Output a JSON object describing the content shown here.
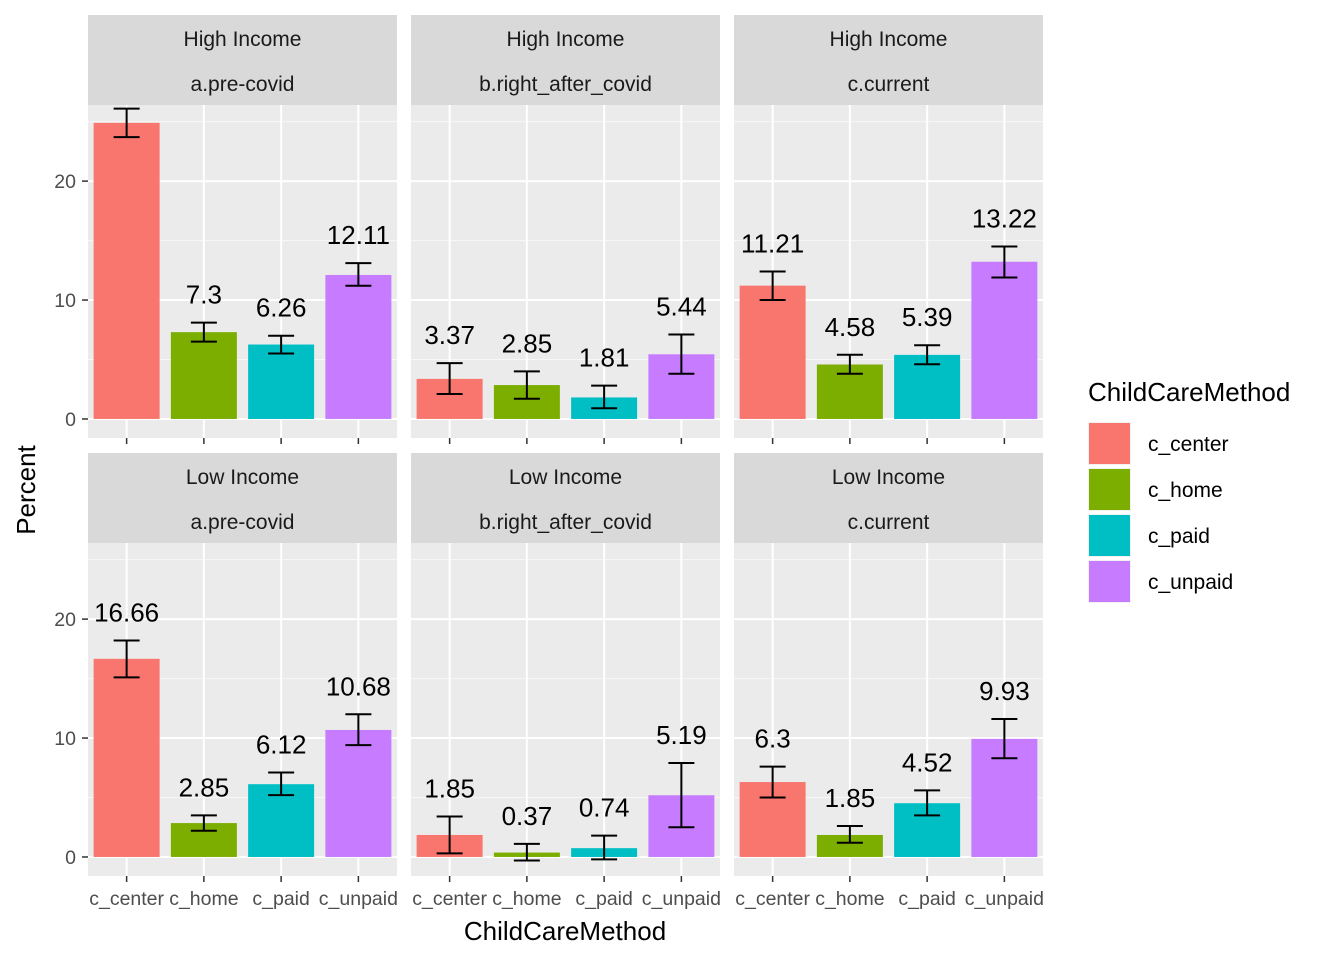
{
  "chart_data": {
    "type": "bar",
    "xlabel": "ChildCareMethod",
    "ylabel": "Percent",
    "ylim": [
      -1.6,
      26.4
    ],
    "yticks": [
      0,
      10,
      20
    ],
    "categories": [
      "c_center",
      "c_home",
      "c_paid",
      "c_unpaid"
    ],
    "colors": {
      "c_center": "#F8766D",
      "c_home": "#7CAE00",
      "c_paid": "#00BFC4",
      "c_unpaid": "#C77CFF"
    },
    "legend": {
      "title": "ChildCareMethod",
      "position": "right",
      "items": [
        "c_center",
        "c_home",
        "c_paid",
        "c_unpaid"
      ]
    },
    "grid": true,
    "panels": [
      {
        "row": 0,
        "col": 0,
        "income": "High Income",
        "period": "a.pre-covid",
        "values": [
          24.9,
          7.3,
          6.26,
          12.11
        ],
        "labels": [
          "",
          "7.3",
          "6.26",
          "12.11"
        ],
        "error_low": [
          23.7,
          6.5,
          5.5,
          11.2
        ],
        "error_high": [
          26.1,
          8.1,
          7.0,
          13.1
        ]
      },
      {
        "row": 0,
        "col": 1,
        "income": "High Income",
        "period": "b.right_after_covid",
        "values": [
          3.37,
          2.85,
          1.81,
          5.44
        ],
        "labels": [
          "3.37",
          "2.85",
          "1.81",
          "5.44"
        ],
        "error_low": [
          2.1,
          1.7,
          0.9,
          3.8
        ],
        "error_high": [
          4.7,
          4.0,
          2.8,
          7.1
        ]
      },
      {
        "row": 0,
        "col": 2,
        "income": "High Income",
        "period": "c.current",
        "values": [
          11.21,
          4.58,
          5.39,
          13.22
        ],
        "labels": [
          "11.21",
          "4.58",
          "5.39",
          "13.22"
        ],
        "error_low": [
          10.0,
          3.8,
          4.6,
          11.9
        ],
        "error_high": [
          12.4,
          5.4,
          6.2,
          14.5
        ]
      },
      {
        "row": 1,
        "col": 0,
        "income": "Low Income",
        "period": "a.pre-covid",
        "values": [
          16.66,
          2.85,
          6.12,
          10.68
        ],
        "labels": [
          "16.66",
          "2.85",
          "6.12",
          "10.68"
        ],
        "error_low": [
          15.1,
          2.2,
          5.2,
          9.4
        ],
        "error_high": [
          18.2,
          3.5,
          7.1,
          12.0
        ]
      },
      {
        "row": 1,
        "col": 1,
        "income": "Low Income",
        "period": "b.right_after_covid",
        "values": [
          1.85,
          0.37,
          0.74,
          5.19
        ],
        "labels": [
          "1.85",
          "0.37",
          "0.74",
          "5.19"
        ],
        "error_low": [
          0.3,
          -0.3,
          -0.2,
          2.5
        ],
        "error_high": [
          3.4,
          1.1,
          1.8,
          7.9
        ]
      },
      {
        "row": 1,
        "col": 2,
        "income": "Low Income",
        "period": "c.current",
        "values": [
          6.3,
          1.85,
          4.52,
          9.93
        ],
        "labels": [
          "6.3",
          "1.85",
          "4.52",
          "9.93"
        ],
        "error_low": [
          5.0,
          1.2,
          3.5,
          8.3
        ],
        "error_high": [
          7.6,
          2.6,
          5.6,
          11.6
        ]
      }
    ]
  }
}
